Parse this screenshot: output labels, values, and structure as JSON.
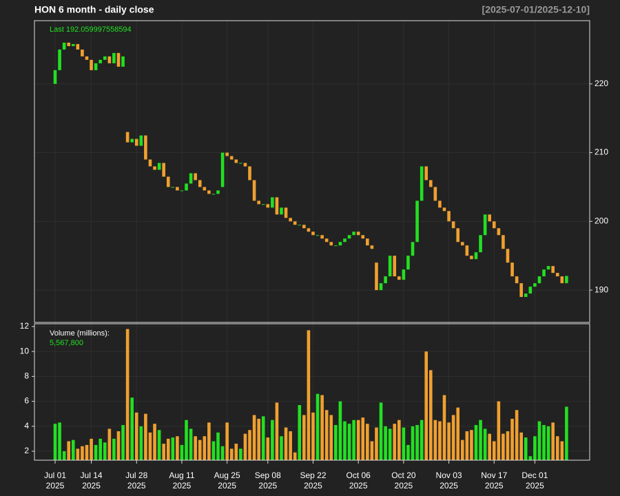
{
  "chart_data": {
    "type": "candlestick",
    "title": "HON  6 month - daily close",
    "range_label": "[2025-07-01/2025-12-10]",
    "last_label": "Last 192.059997558594",
    "volume_title": "Volume (millions):",
    "volume_last_label": "5,567,800",
    "year": "2025",
    "categories": [
      "Jul 01",
      null,
      null,
      null,
      null,
      null,
      null,
      null,
      "Jul 14",
      null,
      null,
      null,
      null,
      null,
      null,
      null,
      null,
      null,
      "Jul 28",
      null,
      null,
      null,
      null,
      null,
      null,
      null,
      null,
      null,
      "Aug 11",
      null,
      null,
      null,
      null,
      null,
      null,
      null,
      null,
      null,
      "Aug 25",
      null,
      null,
      null,
      null,
      null,
      null,
      null,
      null,
      "Sep 08",
      null,
      null,
      null,
      null,
      null,
      null,
      null,
      null,
      null,
      "Sep 22",
      null,
      null,
      null,
      null,
      null,
      null,
      null,
      null,
      null,
      "Oct 06",
      null,
      null,
      null,
      null,
      null,
      null,
      null,
      null,
      null,
      "Oct 20",
      null,
      null,
      null,
      null,
      null,
      null,
      null,
      null,
      null,
      "Nov 03",
      null,
      null,
      null,
      null,
      null,
      null,
      null,
      null,
      null,
      "Nov 17",
      null,
      null,
      null,
      null,
      null,
      null,
      null,
      null,
      "Dec 01",
      null,
      null,
      null,
      null,
      null,
      null,
      null
    ],
    "open": [
      220,
      222,
      225,
      226,
      225.5,
      225.8,
      225,
      224,
      223.5,
      222,
      223,
      223.5,
      224,
      223,
      224.5,
      222.5,
      213,
      211.5,
      212,
      211,
      212.5,
      209,
      208,
      207.5,
      208.5,
      206.5,
      205,
      205,
      204.5,
      204.5,
      205.5,
      207,
      206,
      205,
      204.5,
      204,
      204,
      205,
      210,
      209.5,
      209,
      208.5,
      208.5,
      208,
      206,
      203,
      202.5,
      202.5,
      202,
      203.5,
      201,
      202,
      200.5,
      200,
      199.5,
      199.5,
      199,
      198.5,
      198,
      198,
      197.5,
      197,
      196.5,
      196.5,
      197,
      197.5,
      198,
      198.5,
      198,
      197.5,
      196.5,
      194,
      190,
      191,
      192,
      195,
      192,
      191.5,
      193,
      195,
      197,
      203,
      208,
      206,
      205,
      203,
      202,
      201.5,
      200,
      199,
      197,
      196.5,
      195,
      194.5,
      195.5,
      198,
      201,
      200,
      199,
      198,
      196,
      194,
      192,
      191,
      189,
      189.5,
      190.5,
      191,
      192,
      193,
      193.5,
      192.5,
      192,
      191
    ],
    "close": [
      222,
      225,
      226,
      225.5,
      225.8,
      225,
      224,
      223.5,
      222,
      223,
      223.5,
      224,
      223,
      224.5,
      222.5,
      224,
      211.5,
      212,
      211,
      212.5,
      209,
      208,
      207.5,
      208.5,
      206.5,
      205,
      205,
      204.5,
      204.5,
      205.5,
      207,
      206,
      205,
      204.5,
      204,
      204,
      204.5,
      210,
      209.5,
      209,
      208.5,
      208.5,
      208,
      206,
      203,
      202.5,
      202.5,
      202,
      203.5,
      201,
      202,
      200.5,
      200,
      199.5,
      199.5,
      199,
      198.5,
      198,
      198,
      197.5,
      197,
      196.5,
      196.5,
      197,
      197.5,
      198,
      198.5,
      198,
      197.5,
      196.5,
      196,
      190,
      191,
      192,
      195,
      192,
      191.5,
      193,
      195,
      197,
      203,
      208,
      206,
      205,
      203,
      202,
      201.5,
      200,
      199,
      197,
      196.5,
      195,
      194.5,
      195.5,
      198,
      201,
      200,
      199,
      198,
      196,
      194,
      192,
      191,
      189,
      189.5,
      190.5,
      191,
      192,
      193,
      193.5,
      192.5,
      192,
      191,
      192.06
    ],
    "volume": [
      4.2,
      4.3,
      2.0,
      2.8,
      2.9,
      2.2,
      2.4,
      2.5,
      3.0,
      2.5,
      3.0,
      2.7,
      3.8,
      3.0,
      3.6,
      4.1,
      11.8,
      6.3,
      5.1,
      4.0,
      5.0,
      3.5,
      4.2,
      3.7,
      2.6,
      3.0,
      3.1,
      3.2,
      2.5,
      4.5,
      3.8,
      3.2,
      2.9,
      3.2,
      4.3,
      2.8,
      3.5,
      2.4,
      4.3,
      2.2,
      2.6,
      2.2,
      3.4,
      3.7,
      4.9,
      4.6,
      4.8,
      3.1,
      4.5,
      5.9,
      3.2,
      3.9,
      3.6,
      1.9,
      5.7,
      4.9,
      11.7,
      5.1,
      6.6,
      6.5,
      5.3,
      4.9,
      4.1,
      6.0,
      4.4,
      4.2,
      4.5,
      4.5,
      4.7,
      4.2,
      2.8,
      3.9,
      5.9,
      4.0,
      3.8,
      4.2,
      4.5,
      3.9,
      2.5,
      4.0,
      4.1,
      4.5,
      10.0,
      8.5,
      4.5,
      4.4,
      6.5,
      4.3,
      4.9,
      5.5,
      2.9,
      3.6,
      3.7,
      4.1,
      4.5,
      3.8,
      3.4,
      2.8,
      6.0,
      3.4,
      3.6,
      4.6,
      5.3,
      3.5,
      3.1,
      1.6,
      3.2,
      4.4,
      4.1,
      4.0,
      4.3,
      3.2,
      2.8,
      5.5678
    ],
    "ylim": [
      185.3,
      229.2
    ],
    "yticks": [
      190,
      200,
      210,
      220
    ],
    "y2lim": [
      1.28,
      12.22
    ],
    "y2ticks": [
      2,
      4,
      6,
      8,
      10,
      12
    ],
    "up_color": "#22e022",
    "down_color": "#f0a030",
    "grid": true
  }
}
